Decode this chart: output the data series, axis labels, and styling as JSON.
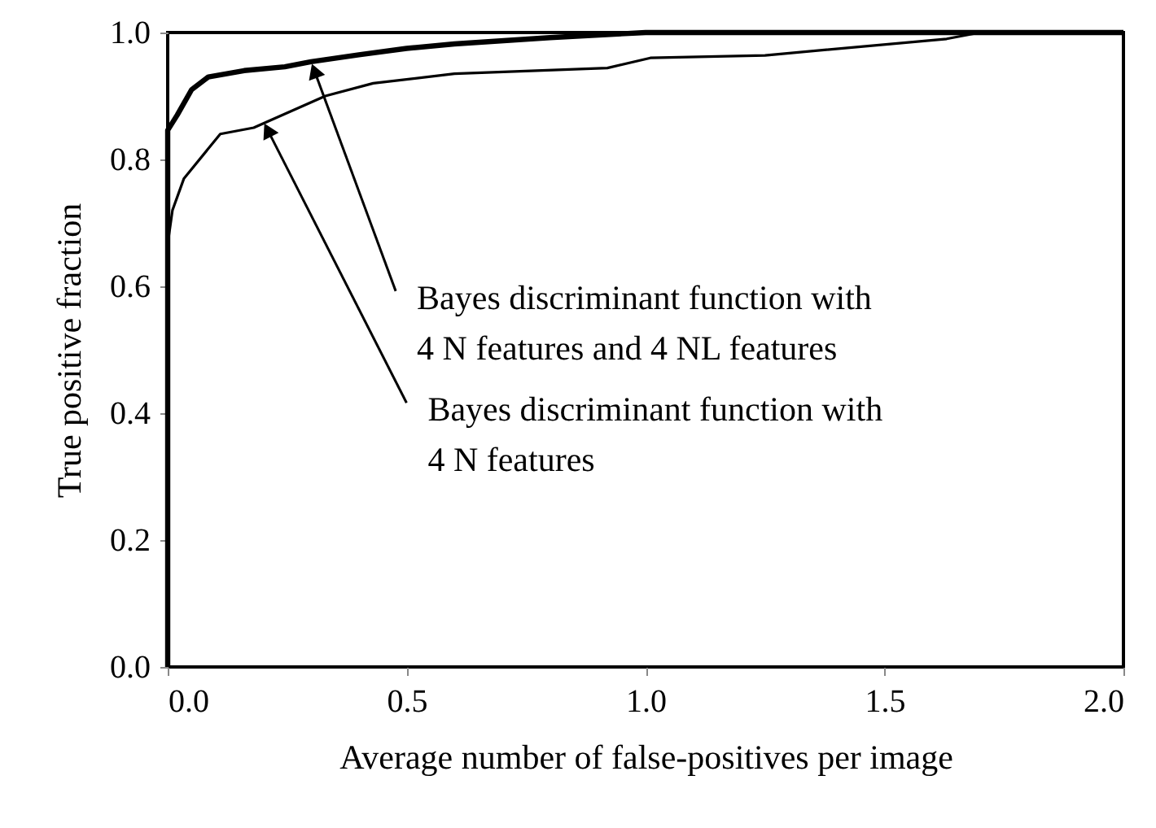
{
  "chart_data": {
    "type": "line",
    "xlabel": "Average number of false-positives per image",
    "ylabel": "True positive fraction",
    "xlim": [
      0,
      2
    ],
    "ylim": [
      0,
      1
    ],
    "xticks": [
      {
        "value": 0,
        "label": "0.0"
      },
      0.5,
      {
        "value": 1,
        "label": "1.0"
      },
      1.5,
      {
        "value": 2,
        "label": "2.0"
      }
    ],
    "yticks": [
      {
        "value": 0,
        "label": "0.0"
      },
      0.2,
      0.4,
      0.6,
      0.8,
      {
        "value": 1,
        "label": "1.0"
      }
    ],
    "grid": false,
    "marker": "none",
    "line_style": "solid",
    "series": [
      {
        "color": "#000000",
        "x": [
          0,
          0,
          0.02,
          0.05,
          0.085,
          0.16,
          0.245,
          0.3,
          0.4,
          0.5,
          0.6,
          0.8,
          1.0,
          2.0
        ],
        "values": [
          0,
          0.846,
          0.87,
          0.91,
          0.93,
          0.94,
          0.946,
          0.954,
          0.965,
          0.975,
          0.982,
          0.992,
          1.0,
          1.0
        ]
      },
      {
        "color": "#000000",
        "x": [
          0,
          0,
          0.01,
          0.034,
          0.11,
          0.18,
          0.33,
          0.43,
          0.6,
          0.92,
          1.01,
          1.25,
          1.63,
          1.7,
          2.0
        ],
        "values": [
          0,
          0.667,
          0.72,
          0.77,
          0.84,
          0.85,
          0.9,
          0.92,
          0.935,
          0.944,
          0.96,
          0.964,
          0.99,
          1.0,
          1.0
        ]
      }
    ],
    "annotations": [
      {
        "text": "Bayes discriminant function with\n4 N features and 4 NL features",
        "x": 0.3,
        "y": 0.954
      },
      {
        "text": "Bayes discriminant function with\n4 N features",
        "x": 0.2,
        "y": 0.86
      }
    ]
  }
}
